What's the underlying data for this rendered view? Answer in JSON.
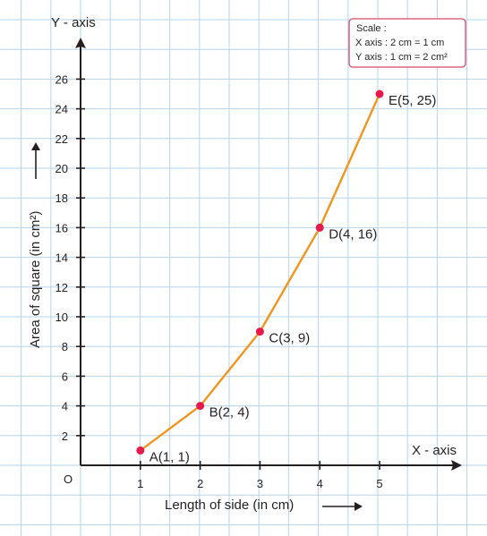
{
  "chart_data": {
    "type": "line",
    "x": [
      1,
      2,
      3,
      4,
      5
    ],
    "y": [
      1,
      4,
      9,
      16,
      25
    ],
    "point_labels": [
      "A(1, 1)",
      "B(2, 4)",
      "C(3, 9)",
      "D(4, 16)",
      "E(5, 25)"
    ],
    "xlabel": "Length of side (in cm)",
    "ylabel": "Area of square (in cm²)",
    "x_axis_name": "X - axis",
    "y_axis_name": "Y - axis",
    "origin_label": "O",
    "x_ticks": [
      1,
      2,
      3,
      4,
      5
    ],
    "y_ticks": [
      2,
      4,
      6,
      8,
      10,
      12,
      14,
      16,
      18,
      20,
      22,
      24,
      26
    ],
    "xlim": [
      0,
      6
    ],
    "ylim": [
      0,
      28
    ],
    "grid": true,
    "scale_box": {
      "title": "Scale :",
      "x_line": "X axis : 2 cm = 1 cm",
      "y_line": "Y axis : 1 cm = 2 cm²"
    },
    "colors": {
      "line": "#f0961e",
      "point": "#e8194b",
      "grid": "#b5d3ec",
      "axis": "#231f20",
      "scale_border": "#d6496a"
    }
  }
}
